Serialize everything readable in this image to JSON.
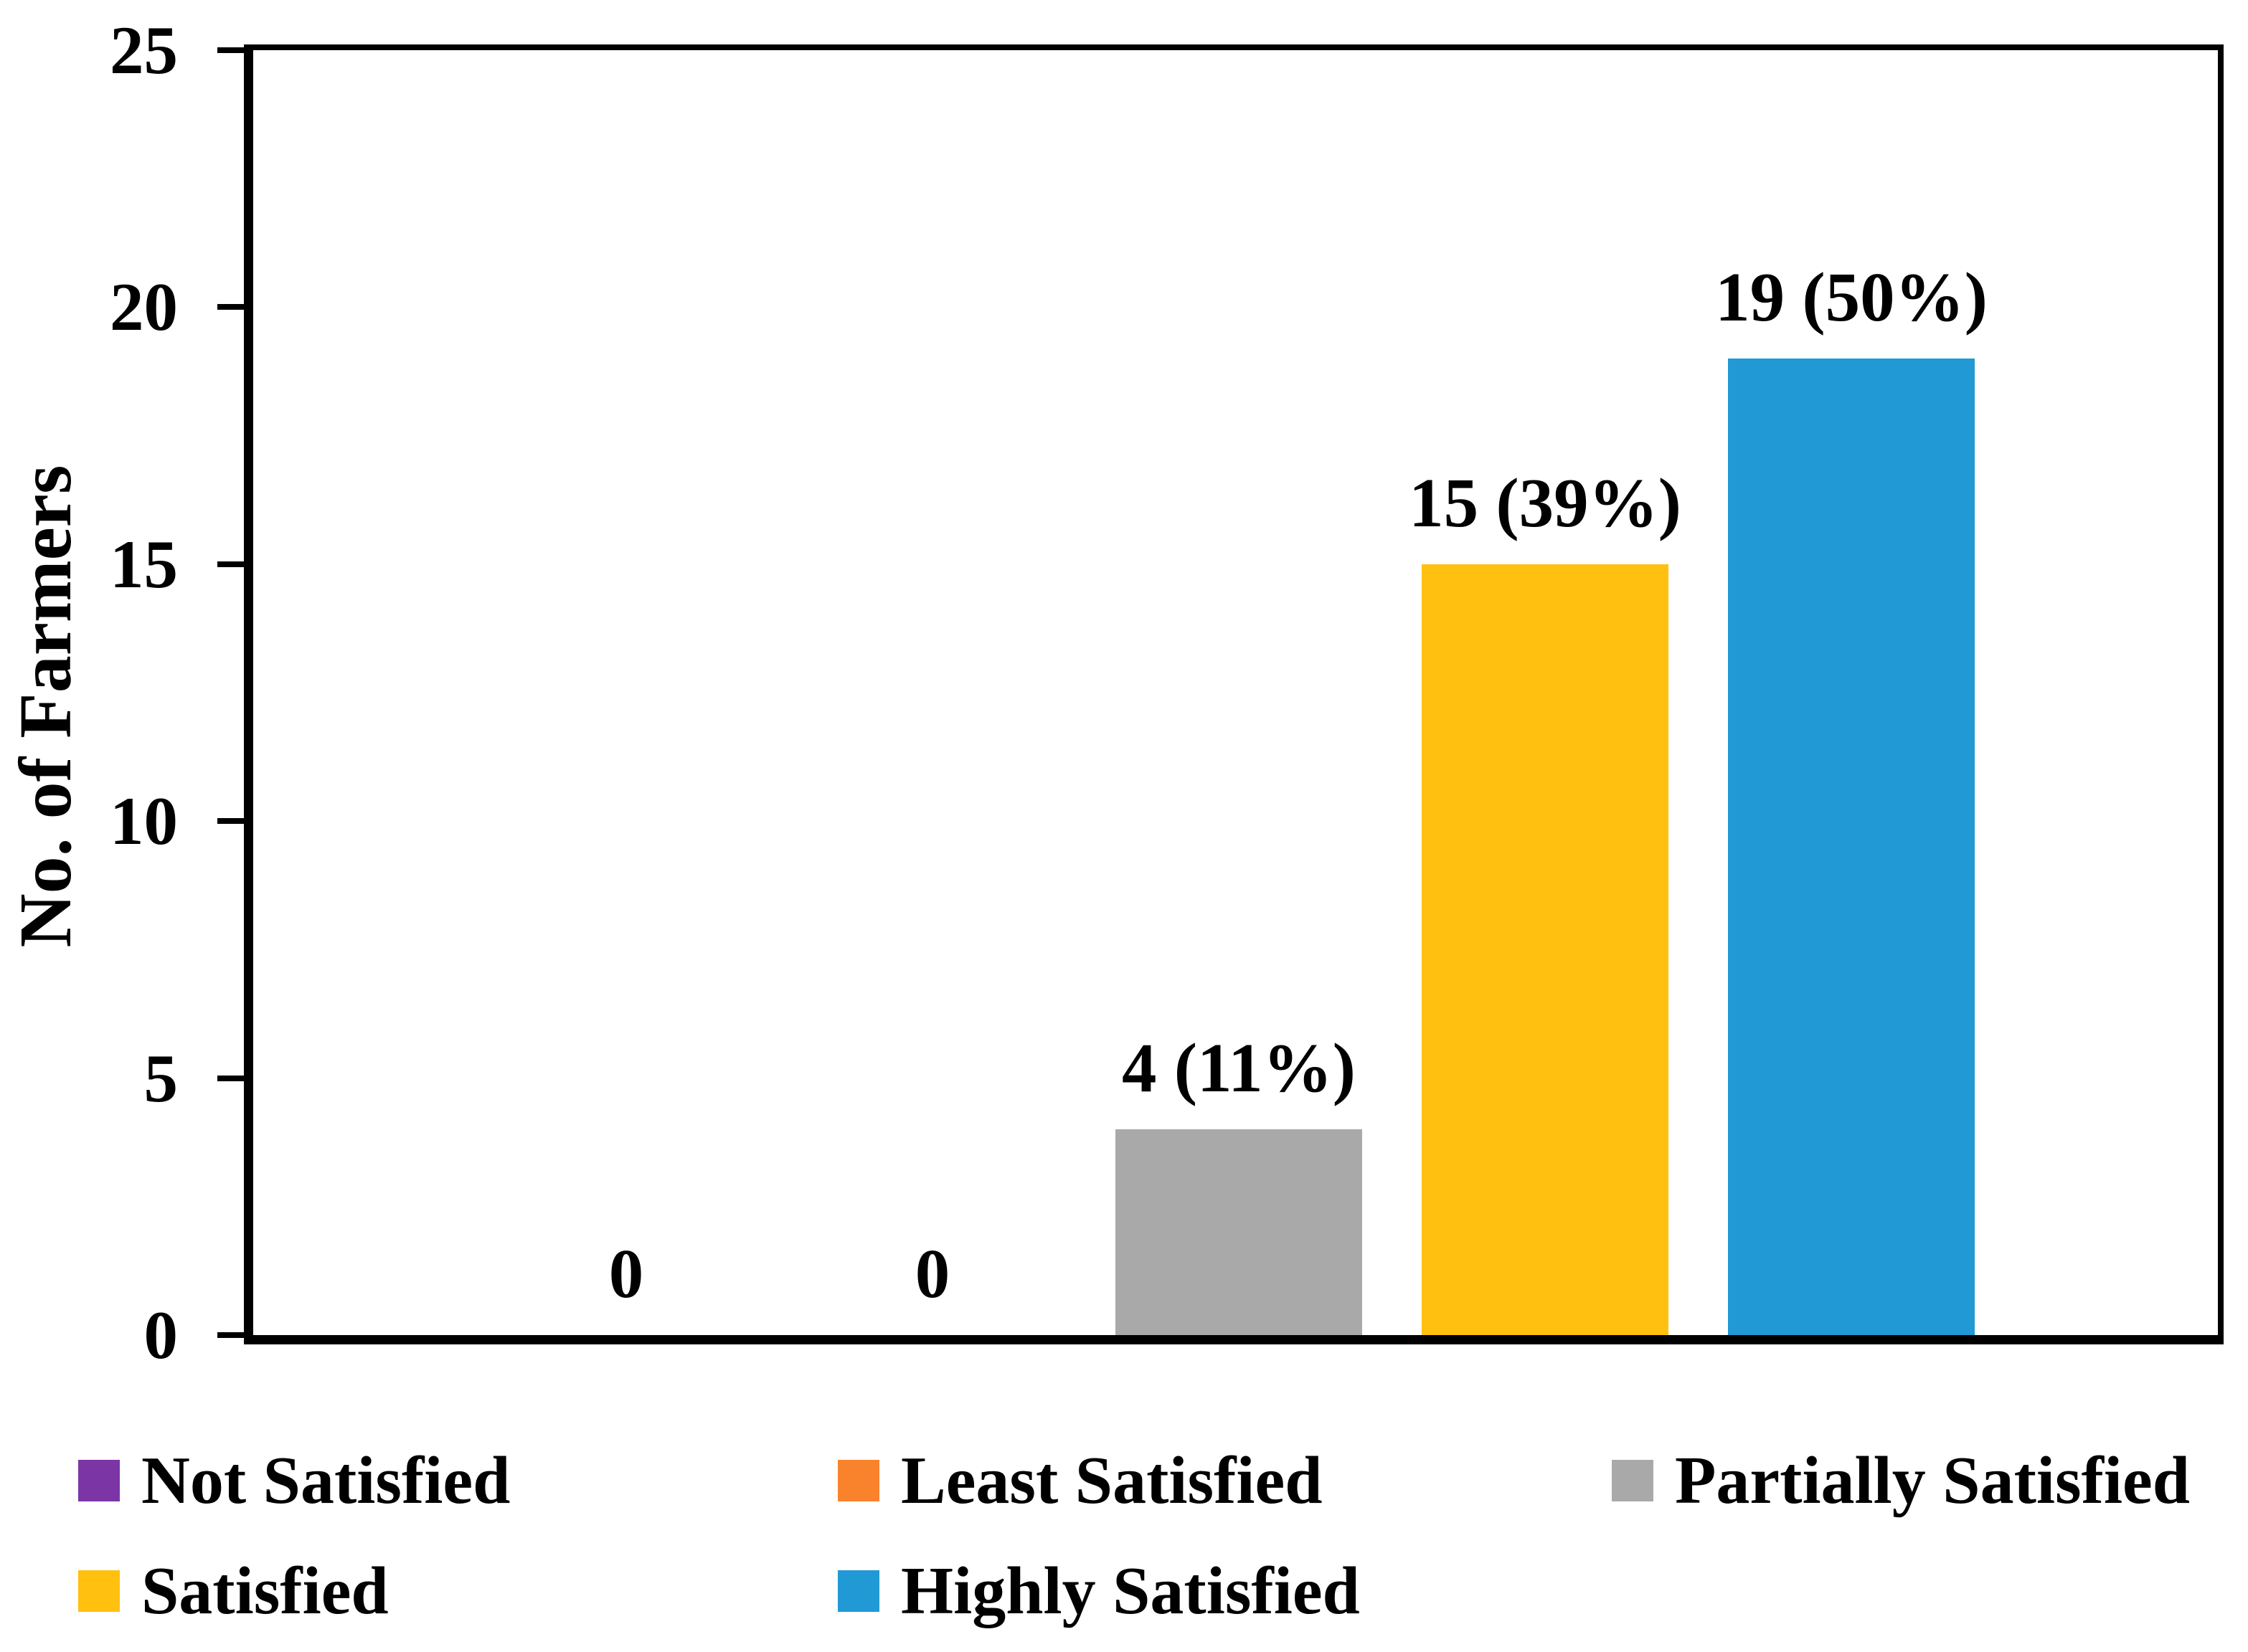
{
  "chart_data": {
    "type": "bar",
    "title": "",
    "xlabel": "",
    "ylabel": "No. of Farmers",
    "ylim": [
      0,
      25
    ],
    "yticks": [
      0,
      5,
      10,
      15,
      20,
      25
    ],
    "grid": false,
    "legend_position": "bottom",
    "categories": [
      "Not Satisfied",
      "Least Satisfied",
      "Partially Satisfied",
      "Satisfied",
      "Highly Satisfied"
    ],
    "values": [
      0,
      0,
      4,
      15,
      19
    ],
    "data_labels": [
      "0",
      "0",
      "4 (11%)",
      "15 (39%)",
      "19 (50%)"
    ],
    "colors": [
      "#7B35A5",
      "#F9822D",
      "#A9A9A9",
      "#FFC010",
      "#2099D5"
    ],
    "axis_color": "#000000",
    "text_color": "#000000",
    "background_color": "#ffffff"
  }
}
